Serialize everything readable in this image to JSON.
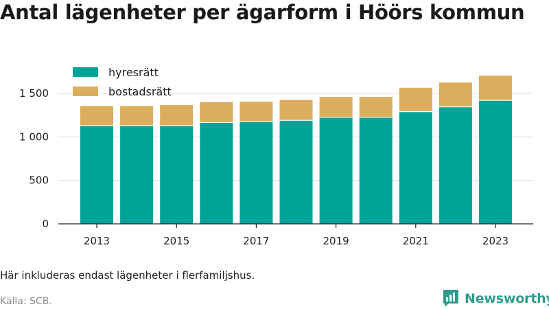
{
  "title": "Antal lägenheter per ägarform i Höörs kommun",
  "note": "Här inkluderas endast lägenheter i flerfamiljshus.",
  "source": "Källa: SCB.",
  "brand": {
    "name": "Newsworthy",
    "icon": "newsworthy-chart-bubble-icon",
    "color": "#2f9c8f"
  },
  "chart_data": {
    "type": "bar",
    "stacked": true,
    "x": [
      2013,
      2014,
      2015,
      2016,
      2017,
      2018,
      2019,
      2020,
      2021,
      2022,
      2023
    ],
    "x_tick_labels": [
      "2013",
      "2015",
      "2017",
      "2019",
      "2021",
      "2023"
    ],
    "y_tick_values": [
      0,
      500,
      1000,
      1500
    ],
    "y_tick_labels": [
      "0",
      "500",
      "1 000",
      "1 500"
    ],
    "ylim": [
      0,
      1800
    ],
    "grid": true,
    "legend_position": "top-left",
    "series": [
      {
        "name": "hyresrätt",
        "color": "#00a398",
        "values": [
          1130,
          1130,
          1130,
          1165,
          1175,
          1190,
          1225,
          1225,
          1290,
          1345,
          1420
        ]
      },
      {
        "name": "bostadsrätt",
        "color": "#dbad5c",
        "values": [
          225,
          225,
          235,
          235,
          230,
          235,
          235,
          235,
          275,
          280,
          285
        ]
      }
    ]
  }
}
